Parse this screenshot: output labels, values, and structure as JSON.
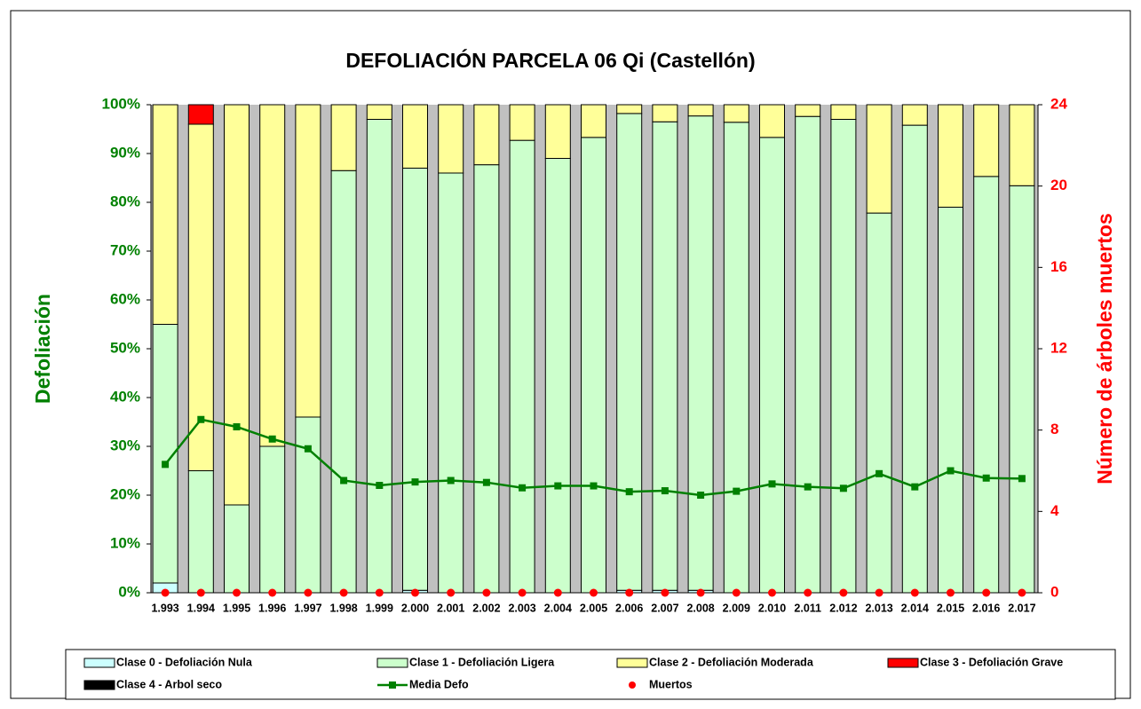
{
  "chart_data": {
    "type": "bar",
    "stacked": true,
    "title": "DEFOLIACIÓN PARCELA 06 Qi (Castellón)",
    "y_label": "Defoliación",
    "y2_label": "Número de árboles muertos",
    "categories": [
      "1.993",
      "1.994",
      "1.995",
      "1.996",
      "1.997",
      "1.998",
      "1.999",
      "2.000",
      "2.001",
      "2.002",
      "2.003",
      "2.004",
      "2.005",
      "2.006",
      "2.007",
      "2.008",
      "2.009",
      "2.010",
      "2.011",
      "2.012",
      "2.013",
      "2.014",
      "2.015",
      "2.016",
      "2.017"
    ],
    "ylim": [
      0,
      100
    ],
    "yticks": [
      {
        "value": 0,
        "label": "0%"
      },
      {
        "value": 10,
        "label": "10%"
      },
      {
        "value": 20,
        "label": "20%"
      },
      {
        "value": 30,
        "label": "30%"
      },
      {
        "value": 40,
        "label": "40%"
      },
      {
        "value": 50,
        "label": "50%"
      },
      {
        "value": 60,
        "label": "60%"
      },
      {
        "value": 70,
        "label": "70%"
      },
      {
        "value": 80,
        "label": "80%"
      },
      {
        "value": 90,
        "label": "90%"
      },
      {
        "value": 100,
        "label": "100%"
      }
    ],
    "y2lim": [
      0,
      24
    ],
    "y2ticks": [
      0,
      4,
      8,
      12,
      16,
      20,
      24
    ],
    "legend": "bottom",
    "background": "#c0c0c0",
    "series": [
      {
        "name": "Clase 0 - Defoliación Nula",
        "type": "bar",
        "color": "#ccffff",
        "values": [
          2,
          0,
          0,
          0,
          0,
          0,
          0,
          0.5,
          0,
          0,
          0,
          0,
          0,
          0.5,
          0.5,
          0.5,
          0,
          0,
          0,
          0,
          0,
          0,
          0,
          0,
          0
        ]
      },
      {
        "name": "Clase 1 - Defoliación Ligera",
        "type": "bar",
        "color": "#ccffcc",
        "values": [
          53,
          25,
          18,
          30,
          36,
          86.5,
          97,
          86.5,
          86,
          87.7,
          92.7,
          89,
          93.3,
          97.7,
          96,
          97.2,
          96.4,
          93.3,
          97.6,
          97,
          77.8,
          95.8,
          79,
          85.3,
          83.4
        ]
      },
      {
        "name": "Clase 2 - Defoliación Moderada",
        "type": "bar",
        "color": "#ffff99",
        "values": [
          45,
          71,
          82,
          70,
          64,
          13.5,
          3,
          13,
          14,
          12.3,
          7.3,
          11,
          6.7,
          1.8,
          3.5,
          2.3,
          3.6,
          6.7,
          2.4,
          3,
          22.2,
          4.2,
          21,
          14.7,
          16.6
        ]
      },
      {
        "name": "Clase 3 - Defoliación Grave",
        "type": "bar",
        "color": "#ff0000",
        "values": [
          0,
          4,
          0,
          0,
          0,
          0,
          0,
          0,
          0,
          0,
          0,
          0,
          0,
          0,
          0,
          0,
          0,
          0,
          0,
          0,
          0,
          0,
          0,
          0,
          0
        ]
      },
      {
        "name": "Clase 4 - Arbol seco",
        "type": "bar",
        "color": "#000000",
        "values": [
          0,
          0,
          0,
          0,
          0,
          0,
          0,
          0,
          0,
          0,
          0,
          0,
          0,
          0,
          0,
          0,
          0,
          0,
          0,
          0,
          0,
          0,
          0,
          0,
          0
        ]
      },
      {
        "name": "Media Defo",
        "type": "line",
        "color": "#008000",
        "values": [
          26.3,
          35.5,
          34,
          31.5,
          29.5,
          23,
          22,
          22.7,
          23,
          22.6,
          21.5,
          21.9,
          21.9,
          20.7,
          20.9,
          20,
          20.8,
          22.3,
          21.7,
          21.4,
          24.4,
          21.7,
          25,
          23.5,
          23.4
        ]
      },
      {
        "name": "Muertos",
        "type": "scatter",
        "axis": "y2",
        "color": "#ff0000",
        "values": [
          0,
          0,
          0,
          0,
          0,
          0,
          0,
          0,
          0,
          0,
          0,
          0,
          0,
          0,
          0,
          0,
          0,
          0,
          0,
          0,
          0,
          0,
          0,
          0,
          0
        ]
      }
    ]
  }
}
